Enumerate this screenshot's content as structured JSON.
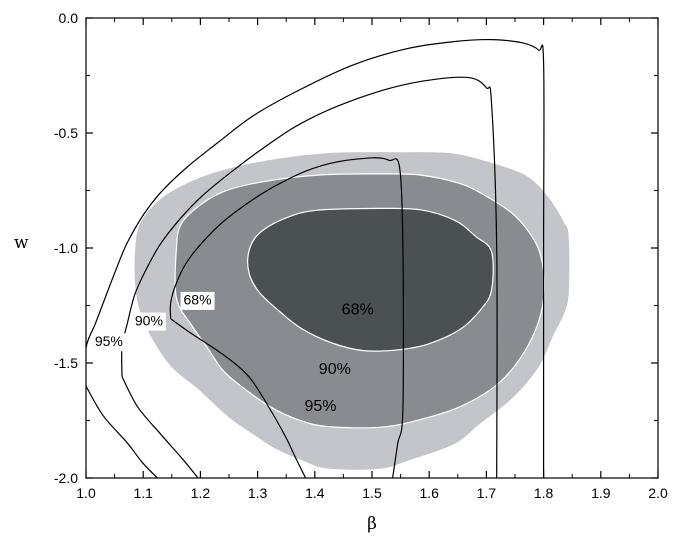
{
  "chart_data": {
    "type": "contour",
    "title": "",
    "xlabel": "β",
    "ylabel": "w",
    "xlim": [
      1.0,
      2.0
    ],
    "ylim": [
      -2.0,
      0.0
    ],
    "x_ticks": [
      "1.0",
      "1.1",
      "1.2",
      "1.3",
      "1.4",
      "1.5",
      "1.6",
      "1.7",
      "1.8",
      "1.9",
      "2.0"
    ],
    "y_ticks": [
      "0.0",
      "-0.5",
      "-1.0",
      "-1.5",
      "-2.0"
    ],
    "x_tick_values": [
      1.0,
      1.1,
      1.2,
      1.3,
      1.4,
      1.5,
      1.6,
      1.7,
      1.8,
      1.9,
      2.0
    ],
    "y_tick_values": [
      0.0,
      -0.5,
      -1.0,
      -1.5,
      -2.0
    ],
    "colors": {
      "filled_95": "#c4c5ca",
      "filled_90": "#888b90",
      "filled_68": "#4b5052",
      "line": "#000000",
      "filled_edge": "#ffffff"
    },
    "filled_regions": [
      {
        "label": "95%",
        "label_pos": [
          1.41,
          -1.69
        ],
        "points": [
          [
            1.548,
            -0.581
          ],
          [
            1.64,
            -0.586
          ],
          [
            1.718,
            -0.634
          ],
          [
            1.773,
            -0.688
          ],
          [
            1.809,
            -0.777
          ],
          [
            1.836,
            -0.885
          ],
          [
            1.845,
            -0.952
          ],
          [
            1.845,
            -1.197
          ],
          [
            1.836,
            -1.29
          ],
          [
            1.818,
            -1.38
          ],
          [
            1.791,
            -1.524
          ],
          [
            1.745,
            -1.657
          ],
          [
            1.69,
            -1.765
          ],
          [
            1.645,
            -1.854
          ],
          [
            1.568,
            -1.923
          ],
          [
            1.512,
            -1.963
          ],
          [
            1.421,
            -1.961
          ],
          [
            1.376,
            -1.924
          ],
          [
            1.331,
            -1.875
          ],
          [
            1.294,
            -1.816
          ],
          [
            1.249,
            -1.738
          ],
          [
            1.194,
            -1.613
          ],
          [
            1.148,
            -1.517
          ],
          [
            1.112,
            -1.384
          ],
          [
            1.094,
            -1.283
          ],
          [
            1.085,
            -1.165
          ],
          [
            1.085,
            -1.002
          ],
          [
            1.094,
            -0.891
          ],
          [
            1.13,
            -0.784
          ],
          [
            1.185,
            -0.706
          ],
          [
            1.249,
            -0.652
          ],
          [
            1.339,
            -0.608
          ],
          [
            1.43,
            -0.584
          ]
        ]
      },
      {
        "label": "90%",
        "label_pos": [
          1.435,
          -1.53
        ],
        "points": [
          [
            1.512,
            -0.678
          ],
          [
            1.585,
            -0.683
          ],
          [
            1.654,
            -0.72
          ],
          [
            1.7,
            -0.775
          ],
          [
            1.745,
            -0.849
          ],
          [
            1.773,
            -0.926
          ],
          [
            1.791,
            -1.004
          ],
          [
            1.8,
            -1.103
          ],
          [
            1.8,
            -1.219
          ],
          [
            1.791,
            -1.321
          ],
          [
            1.773,
            -1.423
          ],
          [
            1.745,
            -1.527
          ],
          [
            1.709,
            -1.613
          ],
          [
            1.654,
            -1.69
          ],
          [
            1.599,
            -1.736
          ],
          [
            1.521,
            -1.778
          ],
          [
            1.421,
            -1.776
          ],
          [
            1.367,
            -1.743
          ],
          [
            1.322,
            -1.69
          ],
          [
            1.276,
            -1.61
          ],
          [
            1.24,
            -1.534
          ],
          [
            1.213,
            -1.437
          ],
          [
            1.185,
            -1.337
          ],
          [
            1.158,
            -1.217
          ],
          [
            1.158,
            -1.003
          ],
          [
            1.167,
            -0.893
          ],
          [
            1.203,
            -0.807
          ],
          [
            1.249,
            -0.747
          ],
          [
            1.321,
            -0.707
          ],
          [
            1.412,
            -0.682
          ]
        ]
      },
      {
        "label": "68%",
        "label_pos": [
          1.475,
          -1.27
        ],
        "points": [
          [
            1.512,
            -0.828
          ],
          [
            1.585,
            -0.834
          ],
          [
            1.645,
            -0.88
          ],
          [
            1.681,
            -0.949
          ],
          [
            1.709,
            -1.016
          ],
          [
            1.709,
            -1.183
          ],
          [
            1.69,
            -1.268
          ],
          [
            1.654,
            -1.354
          ],
          [
            1.599,
            -1.417
          ],
          [
            1.548,
            -1.442
          ],
          [
            1.485,
            -1.446
          ],
          [
            1.43,
            -1.413
          ],
          [
            1.376,
            -1.349
          ],
          [
            1.339,
            -1.277
          ],
          [
            1.303,
            -1.193
          ],
          [
            1.285,
            -1.108
          ],
          [
            1.285,
            -1.012
          ],
          [
            1.303,
            -0.936
          ],
          [
            1.349,
            -0.87
          ],
          [
            1.403,
            -0.836
          ]
        ]
      }
    ],
    "line_contours": [
      {
        "label": "95%",
        "label_pos": [
          1.04,
          -1.41
        ],
        "points": [
          [
            1.0,
            -1.601
          ],
          [
            1.0,
            -1.435
          ],
          [
            1.017,
            -1.325
          ],
          [
            1.035,
            -1.207
          ],
          [
            1.054,
            -1.084
          ],
          [
            1.072,
            -0.978
          ],
          [
            1.099,
            -0.861
          ],
          [
            1.13,
            -0.76
          ],
          [
            1.176,
            -0.65
          ],
          [
            1.231,
            -0.541
          ],
          [
            1.294,
            -0.422
          ],
          [
            1.376,
            -0.309
          ],
          [
            1.467,
            -0.204
          ],
          [
            1.558,
            -0.135
          ],
          [
            1.645,
            -0.102
          ],
          [
            1.709,
            -0.094
          ],
          [
            1.763,
            -0.108
          ],
          [
            1.791,
            -0.139
          ],
          [
            1.8,
            -0.195
          ],
          [
            1.8,
            -1.0
          ],
          [
            1.8,
            -2.0
          ]
        ],
        "extra": [
          [
            1.0,
            -1.601
          ],
          [
            1.03,
            -1.729
          ],
          [
            1.072,
            -1.847
          ],
          [
            1.099,
            -1.934
          ],
          [
            1.125,
            -2.0
          ]
        ]
      },
      {
        "label": "90%",
        "label_pos": [
          1.11,
          -1.32
        ],
        "points": [
          [
            1.063,
            -1.559
          ],
          [
            1.063,
            -1.43
          ],
          [
            1.072,
            -1.33
          ],
          [
            1.085,
            -1.205
          ],
          [
            1.103,
            -1.104
          ],
          [
            1.13,
            -0.983
          ],
          [
            1.167,
            -0.866
          ],
          [
            1.203,
            -0.774
          ],
          [
            1.249,
            -0.679
          ],
          [
            1.303,
            -0.578
          ],
          [
            1.367,
            -0.471
          ],
          [
            1.44,
            -0.383
          ],
          [
            1.53,
            -0.306
          ],
          [
            1.612,
            -0.266
          ],
          [
            1.672,
            -0.26
          ],
          [
            1.7,
            -0.303
          ],
          [
            1.709,
            -0.369
          ],
          [
            1.718,
            -1.0
          ],
          [
            1.718,
            -2.0
          ]
        ],
        "extra": [
          [
            1.063,
            -1.559
          ],
          [
            1.09,
            -1.69
          ],
          [
            1.13,
            -1.808
          ],
          [
            1.167,
            -1.912
          ],
          [
            1.196,
            -2.0
          ]
        ]
      },
      {
        "label": "68%",
        "label_pos": [
          1.195,
          -1.23
        ],
        "points": [
          [
            1.148,
            -1.308
          ],
          [
            1.148,
            -1.238
          ],
          [
            1.158,
            -1.152
          ],
          [
            1.176,
            -1.062
          ],
          [
            1.203,
            -0.977
          ],
          [
            1.24,
            -0.885
          ],
          [
            1.285,
            -0.801
          ],
          [
            1.331,
            -0.73
          ],
          [
            1.385,
            -0.665
          ],
          [
            1.44,
            -0.625
          ],
          [
            1.503,
            -0.608
          ],
          [
            1.53,
            -0.619
          ],
          [
            1.548,
            -0.648
          ],
          [
            1.554,
            -1.0
          ],
          [
            1.554,
            -1.7
          ],
          [
            1.545,
            -1.85
          ],
          [
            1.536,
            -2.0
          ]
        ],
        "extra": [
          [
            1.148,
            -1.308
          ],
          [
            1.185,
            -1.373
          ],
          [
            1.24,
            -1.464
          ],
          [
            1.285,
            -1.56
          ],
          [
            1.322,
            -1.702
          ],
          [
            1.349,
            -1.821
          ],
          [
            1.367,
            -1.915
          ],
          [
            1.384,
            -2.0
          ]
        ]
      }
    ]
  }
}
